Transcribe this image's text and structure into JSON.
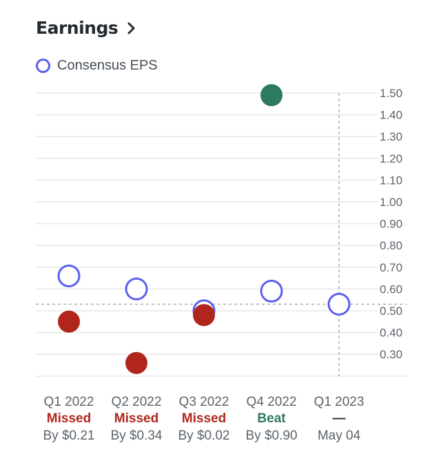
{
  "header": {
    "title": "Earnings"
  },
  "legend": {
    "label": "Consensus EPS"
  },
  "colors": {
    "estimate": "#5b5ff0",
    "missed": "#b0261d",
    "beat": "#2e7a5e",
    "grid": "#e6e7e8",
    "text": "#5b636a",
    "dashed": "#a9adb1"
  },
  "chart_data": {
    "type": "scatter",
    "ylim": [
      0.2,
      1.5
    ],
    "yticks": [
      "1.50",
      "1.40",
      "1.30",
      "1.20",
      "1.10",
      "1.00",
      "0.90",
      "0.80",
      "0.70",
      "0.60",
      "0.50",
      "0.40",
      "0.30"
    ],
    "series": [
      {
        "name": "Consensus EPS",
        "values": [
          0.66,
          0.6,
          0.5,
          0.59,
          0.53
        ]
      },
      {
        "values": [
          0.45,
          0.26,
          0.48,
          1.49,
          null
        ]
      }
    ],
    "categories": [
      "Q1 2022",
      "Q2 2022",
      "Q3 2022",
      "Q4 2022",
      "Q1 2023"
    ],
    "results": [
      "Missed",
      "Missed",
      "Missed",
      "Beat",
      "—"
    ],
    "result_status": [
      "missed",
      "missed",
      "missed",
      "beat",
      "upcoming"
    ],
    "details": [
      "By $0.21",
      "By $0.34",
      "By $0.02",
      "By $0.90",
      "May 04"
    ],
    "reference_line": 0.53
  }
}
